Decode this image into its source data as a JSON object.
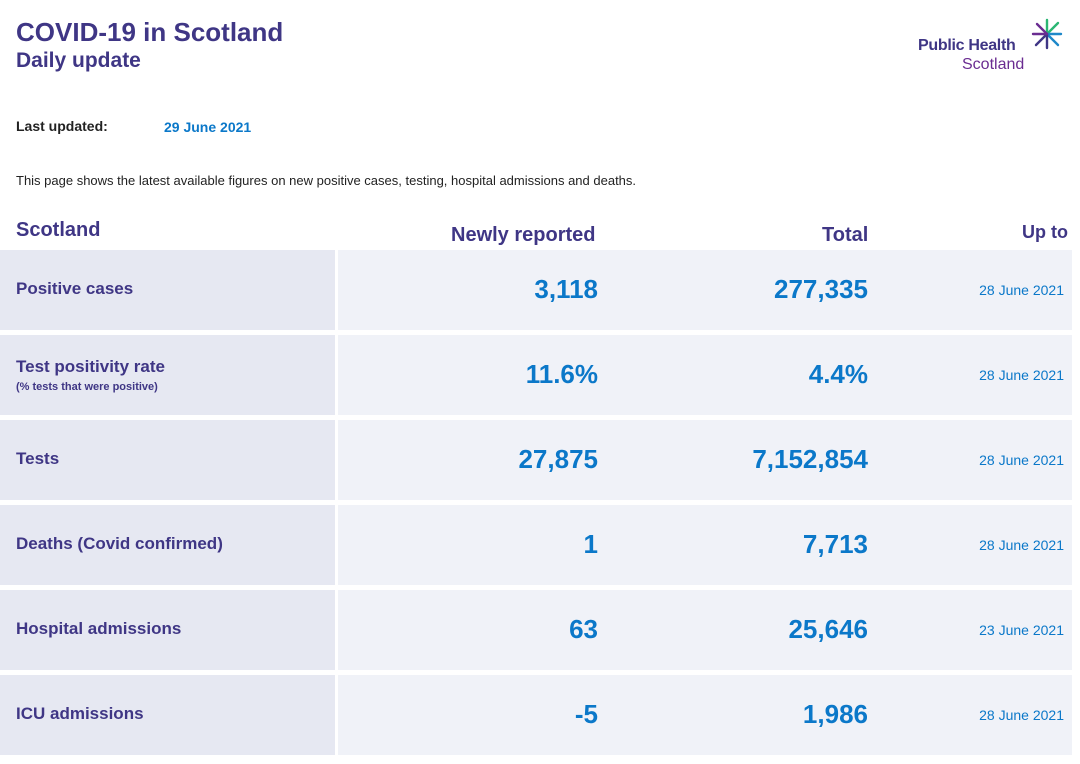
{
  "header": {
    "title": "COVID-19 in Scotland",
    "subtitle": "Daily update",
    "logo_line1": "Public Health",
    "logo_line2": "Scotland"
  },
  "last_updated": {
    "label": "Last updated:",
    "value": "29 June 2021"
  },
  "intro_text": "This page shows the latest available figures on new positive cases, testing, hospital admissions and deaths.",
  "table": {
    "headers": {
      "area": "Scotland",
      "newly_reported": "Newly reported",
      "total": "Total",
      "up_to": "Up to"
    },
    "rows": [
      {
        "label": "Positive cases",
        "sublabel": "",
        "newly_reported": "3,118",
        "total": "277,335",
        "up_to": "28 June 2021"
      },
      {
        "label": "Test positivity rate",
        "sublabel": "(% tests that were positive)",
        "newly_reported": "11.6%",
        "total": "4.4%",
        "up_to": "28 June 2021"
      },
      {
        "label": "Tests",
        "sublabel": "",
        "newly_reported": "27,875",
        "total": "7,152,854",
        "up_to": "28 June 2021"
      },
      {
        "label": "Deaths (Covid confirmed)",
        "sublabel": "",
        "newly_reported": "1",
        "total": "7,713",
        "up_to": "28 June 2021"
      },
      {
        "label": "Hospital admissions",
        "sublabel": "",
        "newly_reported": "63",
        "total": "25,646",
        "up_to": "23 June 2021"
      },
      {
        "label": "ICU admissions",
        "sublabel": "",
        "newly_reported": "-5",
        "total": "1,986",
        "up_to": "28 June 2021"
      }
    ]
  },
  "colors": {
    "heading": "#3f3685",
    "accent": "#0b78c9",
    "row_label_bg": "#e6e8f2",
    "row_data_bg": "#f0f2f8"
  }
}
